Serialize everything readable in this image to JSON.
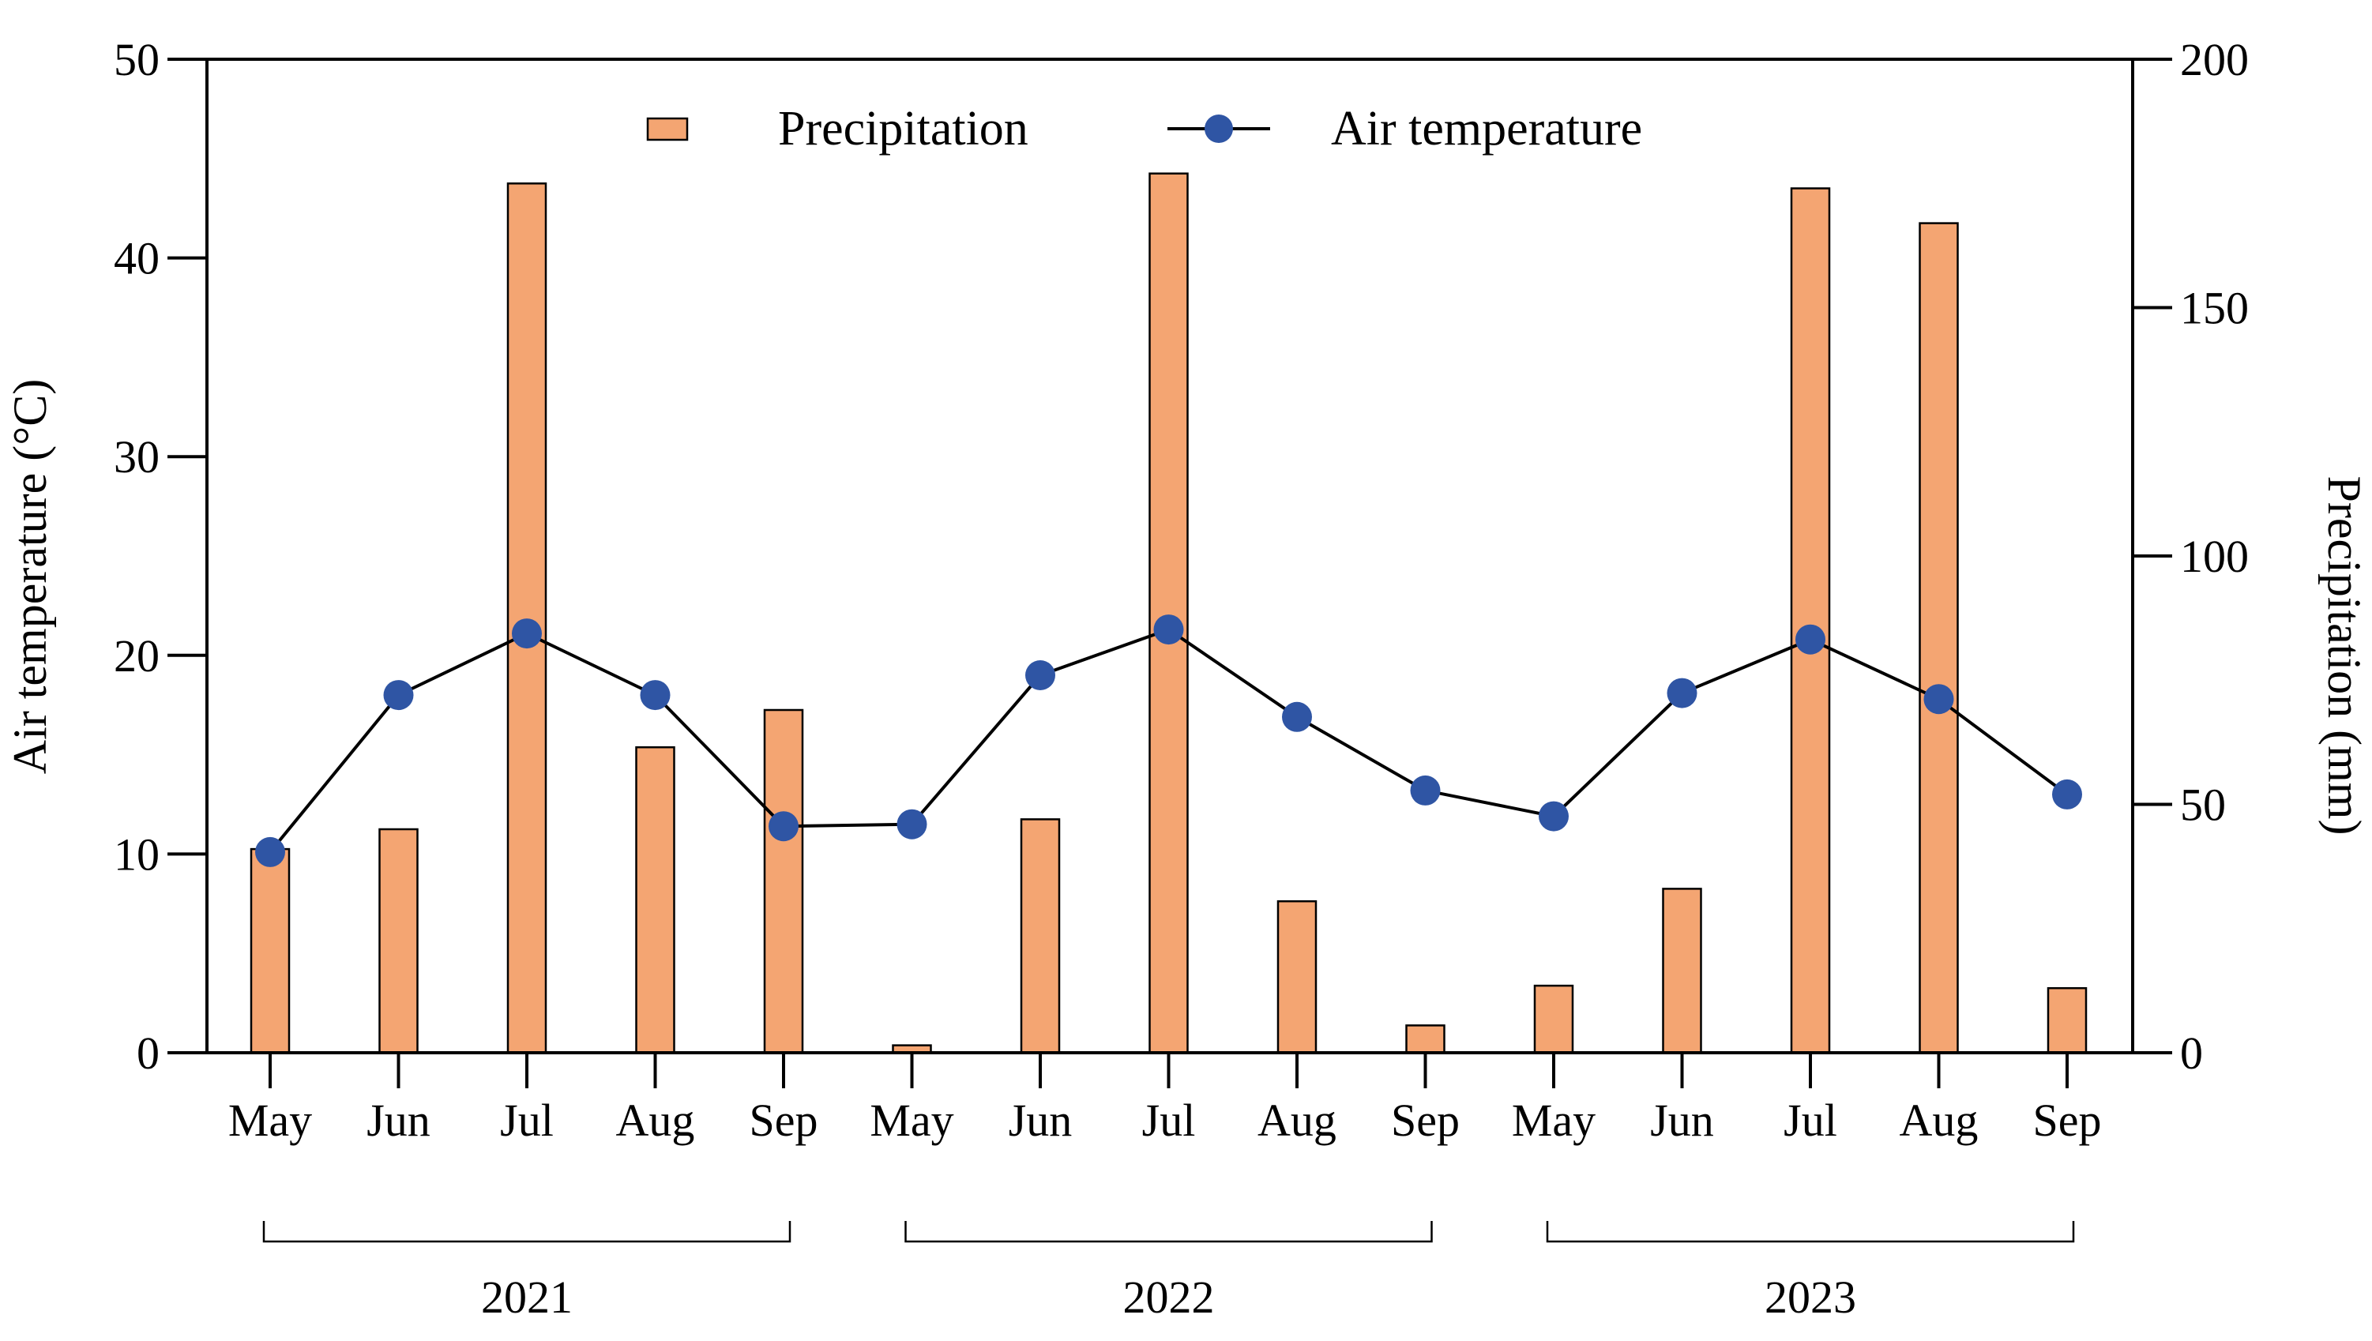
{
  "chart_data": {
    "type": "bar+line",
    "categories": [
      "May",
      "Jun",
      "Jul",
      "Aug",
      "Sep",
      "May",
      "Jun",
      "Jul",
      "Aug",
      "Sep",
      "May",
      "Jun",
      "Jul",
      "Aug",
      "Sep"
    ],
    "groups": [
      {
        "label": "2021",
        "start": 0,
        "end": 4
      },
      {
        "label": "2022",
        "start": 5,
        "end": 9
      },
      {
        "label": "2023",
        "start": 10,
        "end": 14
      }
    ],
    "series": [
      {
        "name": "Precipitation",
        "type": "bar",
        "axis": "right",
        "color": "#F4A572",
        "values": [
          41,
          45,
          175,
          61.5,
          69,
          1.5,
          47,
          177,
          30.5,
          5.5,
          13.5,
          33,
          174,
          167,
          13
        ]
      },
      {
        "name": "Air temperature",
        "type": "line",
        "axis": "left",
        "color": "#2F55A4",
        "values": [
          10.1,
          18.0,
          21.1,
          18.0,
          11.4,
          11.5,
          19.0,
          21.3,
          16.9,
          13.2,
          11.9,
          18.1,
          20.8,
          17.8,
          13.0
        ]
      }
    ],
    "left_axis": {
      "label": "Air temperature (°C)",
      "ylim": [
        0,
        50
      ],
      "ticks": [
        "0",
        "10",
        "20",
        "30",
        "40",
        "50"
      ]
    },
    "right_axis": {
      "label": "Precipitation (mm)",
      "ylim": [
        0,
        200
      ],
      "ticks": [
        "0",
        "50",
        "100",
        "150",
        "200"
      ]
    },
    "legend": {
      "placement": "top-center",
      "precipitation_label": "Precipitation",
      "temperature_label": "Air temperature"
    },
    "grid": false
  }
}
